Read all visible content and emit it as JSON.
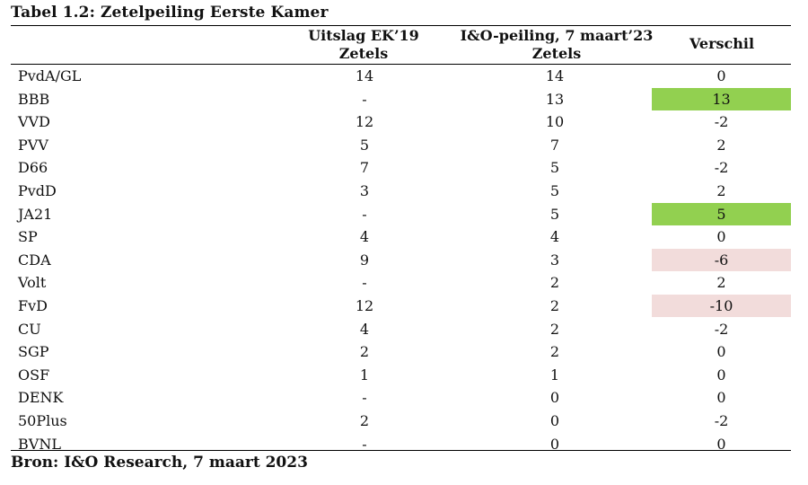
{
  "title": "Tabel 1.2: Zetelpeiling Eerste Kamer",
  "columns": {
    "c1_line1": "Uitslag EK’19",
    "c1_line2": "Zetels",
    "c2_line1": "I&O-peiling, 7 maart’23",
    "c2_line2": "Zetels",
    "c3": "Verschil"
  },
  "rows": [
    {
      "party": "PvdA/GL",
      "ek19": "14",
      "peiling": "14",
      "verschil": "0",
      "highlight": ""
    },
    {
      "party": "BBB",
      "ek19": "-",
      "peiling": "13",
      "verschil": "13",
      "highlight": "pos"
    },
    {
      "party": "VVD",
      "ek19": "12",
      "peiling": "10",
      "verschil": "-2",
      "highlight": ""
    },
    {
      "party": "PVV",
      "ek19": "5",
      "peiling": "7",
      "verschil": "2",
      "highlight": ""
    },
    {
      "party": "D66",
      "ek19": "7",
      "peiling": "5",
      "verschil": "-2",
      "highlight": ""
    },
    {
      "party": "PvdD",
      "ek19": "3",
      "peiling": "5",
      "verschil": "2",
      "highlight": ""
    },
    {
      "party": "JA21",
      "ek19": "-",
      "peiling": "5",
      "verschil": "5",
      "highlight": "pos"
    },
    {
      "party": "SP",
      "ek19": "4",
      "peiling": "4",
      "verschil": "0",
      "highlight": ""
    },
    {
      "party": "CDA",
      "ek19": "9",
      "peiling": "3",
      "verschil": "-6",
      "highlight": "neg"
    },
    {
      "party": "Volt",
      "ek19": "-",
      "peiling": "2",
      "verschil": "2",
      "highlight": ""
    },
    {
      "party": "FvD",
      "ek19": "12",
      "peiling": "2",
      "verschil": "-10",
      "highlight": "neg"
    },
    {
      "party": "CU",
      "ek19": "4",
      "peiling": "2",
      "verschil": "-2",
      "highlight": ""
    },
    {
      "party": "SGP",
      "ek19": "2",
      "peiling": "2",
      "verschil": "0",
      "highlight": ""
    },
    {
      "party": "OSF",
      "ek19": "1",
      "peiling": "1",
      "verschil": "0",
      "highlight": ""
    },
    {
      "party": "DENK",
      "ek19": "-",
      "peiling": "0",
      "verschil": "0",
      "highlight": ""
    },
    {
      "party": "50Plus",
      "ek19": "2",
      "peiling": "0",
      "verschil": "-2",
      "highlight": ""
    },
    {
      "party": "BVNL",
      "ek19": "-",
      "peiling": "0",
      "verschil": "0",
      "highlight": ""
    }
  ],
  "colors": {
    "positive_highlight": "#92d050",
    "negative_highlight": "#f2dcdb"
  },
  "source": "Bron: I&O Research, 7 maart 2023"
}
